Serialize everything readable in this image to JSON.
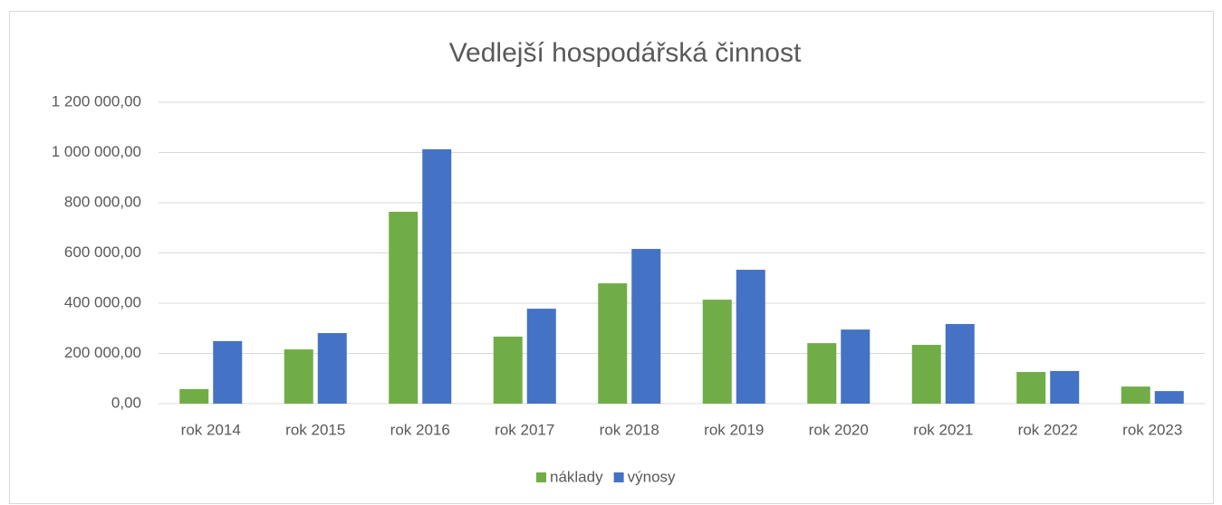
{
  "chart_data": {
    "type": "bar",
    "title": "Vedlejší hospodářská činnost",
    "categories": [
      "rok 2014",
      "rok 2015",
      "rok 2016",
      "rok 2017",
      "rok 2018",
      "rok 2019",
      "rok 2020",
      "rok 2021",
      "rok 2022",
      "rok 2023"
    ],
    "series": [
      {
        "name": "náklady",
        "color": "#70ad47",
        "values": [
          58000,
          216000,
          764000,
          267000,
          479000,
          414000,
          241000,
          234000,
          126000,
          68000
        ]
      },
      {
        "name": "výnosy",
        "color": "#4472c4",
        "values": [
          249000,
          281000,
          1013000,
          378000,
          616000,
          533000,
          295000,
          317000,
          130000,
          50000
        ]
      }
    ],
    "ylim": [
      0,
      1200000
    ],
    "yticks": [
      {
        "value": 0,
        "label": "0,00"
      },
      {
        "value": 200000,
        "label": "200 000,00"
      },
      {
        "value": 400000,
        "label": "400 000,00"
      },
      {
        "value": 600000,
        "label": "600 000,00"
      },
      {
        "value": 800000,
        "label": "800 000,00"
      },
      {
        "value": 1000000,
        "label": "1 000 000,00"
      },
      {
        "value": 1200000,
        "label": "1 200 000,00"
      }
    ],
    "grid": true,
    "legend": "bottom"
  }
}
